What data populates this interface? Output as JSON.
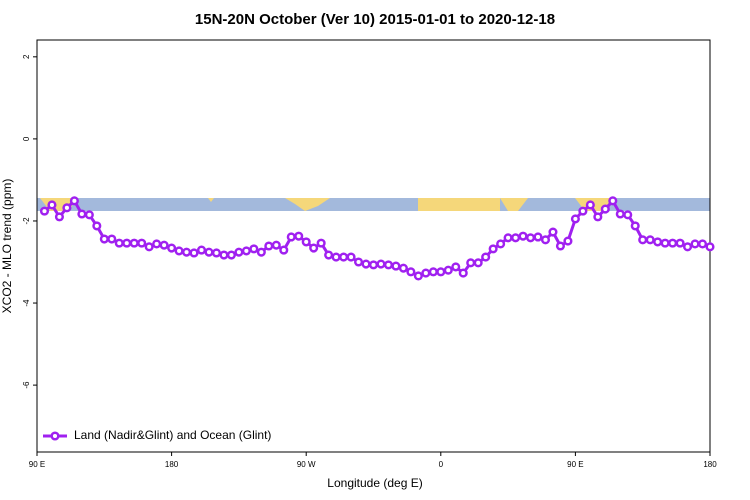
{
  "chart_data": {
    "type": "line",
    "title": "15N-20N October (Ver 10)   2015-01-01 to 2020-12-18",
    "x_label": "Longitude (deg E)",
    "y_label": "XCO2 - MLO trend (ppm)",
    "x": [
      95,
      100,
      105,
      110,
      115,
      120,
      125,
      130,
      135,
      140,
      145,
      150,
      155,
      160,
      165,
      170,
      175,
      180,
      185,
      190,
      195,
      200,
      205,
      210,
      215,
      220,
      225,
      230,
      235,
      240,
      245,
      250,
      255,
      260,
      265,
      270,
      275,
      280,
      285,
      290,
      295,
      300,
      305,
      310,
      315,
      320,
      325,
      330,
      335,
      340,
      345,
      350,
      355,
      360,
      365,
      370,
      375,
      380,
      385,
      390,
      395,
      400,
      405,
      410,
      415,
      420,
      425,
      430,
      435,
      440,
      445,
      450,
      455,
      460,
      465,
      470,
      475,
      480,
      485,
      490,
      495,
      500,
      505,
      510,
      515,
      520,
      525,
      530,
      535,
      540
    ],
    "series": [
      {
        "name": "Land (Nadir&Glint) and Ocean (Glint)",
        "color": "#a020f0",
        "values": [
          -1.76,
          -1.61,
          -1.9,
          -1.68,
          -1.51,
          -1.83,
          -1.85,
          -2.12,
          -2.44,
          -2.44,
          -2.54,
          -2.54,
          -2.54,
          -2.54,
          -2.63,
          -2.56,
          -2.59,
          -2.66,
          -2.73,
          -2.76,
          -2.78,
          -2.71,
          -2.76,
          -2.78,
          -2.83,
          -2.83,
          -2.76,
          -2.73,
          -2.68,
          -2.76,
          -2.61,
          -2.59,
          -2.71,
          -2.39,
          -2.37,
          -2.51,
          -2.66,
          -2.54,
          -2.83,
          -2.88,
          -2.88,
          -2.88,
          -3.0,
          -3.05,
          -3.07,
          -3.05,
          -3.07,
          -3.1,
          -3.15,
          -3.24,
          -3.34,
          -3.27,
          -3.24,
          -3.24,
          -3.2,
          -3.12,
          -3.27,
          -3.02,
          -3.02,
          -2.88,
          -2.68,
          -2.56,
          -2.41,
          -2.41,
          -2.37,
          -2.41,
          -2.39,
          -2.46,
          -2.27,
          -2.61,
          -2.49,
          -1.95,
          -1.76,
          -1.61,
          -1.9,
          -1.71,
          -1.51,
          -1.83,
          -1.85,
          -2.12,
          -2.46,
          -2.46,
          -2.51,
          -2.54,
          -2.54,
          -2.54,
          -2.63,
          -2.56,
          -2.56,
          -2.63
        ]
      }
    ],
    "xlim": [
      90,
      540
    ],
    "xticks": [
      {
        "value": 90,
        "label": "90 E"
      },
      {
        "value": 180,
        "label": "180"
      },
      {
        "value": 270,
        "label": "90 W"
      },
      {
        "value": 360,
        "label": "0"
      },
      {
        "value": 450,
        "label": "90 E"
      },
      {
        "value": 540,
        "label": "180"
      }
    ],
    "ylim": [
      -7.63,
      2.41
    ],
    "yticks": [
      -6,
      -4,
      -2,
      0,
      2
    ],
    "legend": "bottom-left"
  }
}
